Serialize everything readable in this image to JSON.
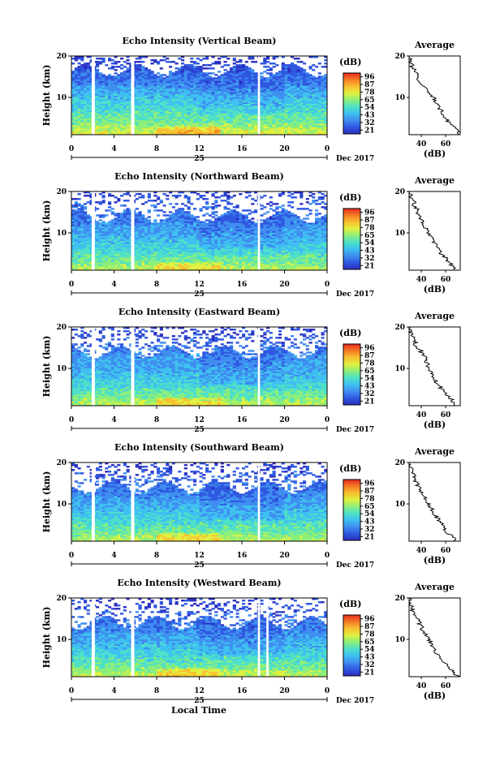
{
  "figure": {
    "xlabel": "Local Time",
    "date_label": "Dec 2017",
    "day_label": "25",
    "ylabel": "Height (km)",
    "colorbar_unit": "(dB)",
    "colorbar_ticks": [
      "96",
      "87",
      "78",
      "65",
      "54",
      "43",
      "32",
      "21"
    ],
    "colorscale": [
      "#2b2ec0",
      "#2f58e0",
      "#3f8ef0",
      "#3fc0f0",
      "#4ee0c8",
      "#8cef7a",
      "#e0f040",
      "#f8c030",
      "#f37d25",
      "#e8281e"
    ],
    "avg_title": "Average",
    "avg_xlabel": "(dB)",
    "avg_xticks": [
      "40",
      "60"
    ],
    "yticks": [
      "20",
      "10"
    ],
    "xticks": [
      "0",
      "4",
      "8",
      "12",
      "16",
      "20",
      "0"
    ]
  },
  "chart_data": [
    {
      "type": "heatmap",
      "title": "Echo Intensity (Vertical Beam)",
      "x_range_hours": [
        0,
        24
      ],
      "y_range_km": [
        1,
        20
      ],
      "z_range_db": [
        21,
        96
      ],
      "gaps_hours": [
        [
          1.9,
          2.2
        ],
        [
          5.6,
          5.9
        ],
        [
          17.5,
          17.7
        ]
      ],
      "avg_profile": {
        "height_km": [
          1,
          2,
          3,
          4,
          5,
          6,
          7,
          8,
          9,
          10,
          11,
          12,
          13,
          14,
          15,
          16,
          17,
          18,
          19,
          20
        ],
        "value_db": [
          72,
          70,
          66,
          62,
          60,
          58,
          56,
          54,
          52,
          50,
          47,
          44,
          41,
          38,
          37,
          36,
          33,
          32,
          31,
          30
        ]
      }
    },
    {
      "type": "heatmap",
      "title": "Echo Intensity (Northward Beam)",
      "x_range_hours": [
        0,
        24
      ],
      "y_range_km": [
        1,
        20
      ],
      "z_range_db": [
        21,
        96
      ],
      "gaps_hours": [
        [
          1.9,
          2.2
        ],
        [
          5.6,
          5.9
        ],
        [
          17.5,
          17.7
        ]
      ],
      "avg_profile": {
        "height_km": [
          1,
          2,
          3,
          4,
          5,
          6,
          7,
          8,
          9,
          10,
          11,
          12,
          13,
          14,
          15,
          16,
          17,
          18,
          19,
          20
        ],
        "value_db": [
          68,
          66,
          62,
          60,
          56,
          54,
          52,
          50,
          48,
          45,
          44,
          42,
          40,
          38,
          37,
          36,
          34,
          33,
          31,
          30
        ]
      }
    },
    {
      "type": "heatmap",
      "title": "Echo Intensity (Eastward Beam)",
      "x_range_hours": [
        0,
        24
      ],
      "y_range_km": [
        1,
        20
      ],
      "z_range_db": [
        21,
        96
      ],
      "gaps_hours": [
        [
          1.9,
          2.2
        ],
        [
          5.6,
          5.9
        ],
        [
          17.5,
          17.7
        ]
      ],
      "avg_profile": {
        "height_km": [
          1,
          2,
          3,
          4,
          5,
          6,
          7,
          8,
          9,
          10,
          11,
          12,
          13,
          14,
          15,
          16,
          17,
          18,
          19,
          20
        ],
        "value_db": [
          68,
          66,
          63,
          60,
          57,
          54,
          52,
          50,
          48,
          46,
          45,
          44,
          43,
          40,
          37,
          35,
          34,
          33,
          31,
          30
        ]
      }
    },
    {
      "type": "heatmap",
      "title": "Echo Intensity (Southward Beam)",
      "x_range_hours": [
        0,
        24
      ],
      "y_range_km": [
        1,
        20
      ],
      "z_range_db": [
        21,
        96
      ],
      "gaps_hours": [
        [
          1.9,
          2.2
        ],
        [
          5.6,
          5.9
        ],
        [
          17.5,
          17.7
        ]
      ],
      "avg_profile": {
        "height_km": [
          1,
          2,
          3,
          4,
          5,
          6,
          7,
          8,
          9,
          10,
          11,
          12,
          13,
          14,
          15,
          16,
          17,
          18,
          19,
          20
        ],
        "value_db": [
          68,
          66,
          62,
          59,
          57,
          55,
          52,
          50,
          48,
          46,
          44,
          42,
          40,
          38,
          36,
          35,
          34,
          32,
          31,
          30
        ]
      }
    },
    {
      "type": "heatmap",
      "title": "Echo Intensity (Westward Beam)",
      "x_range_hours": [
        0,
        24
      ],
      "y_range_km": [
        1,
        20
      ],
      "z_range_db": [
        21,
        96
      ],
      "gaps_hours": [
        [
          1.9,
          2.2
        ],
        [
          5.6,
          5.9
        ],
        [
          17.5,
          17.7
        ],
        [
          18.3,
          18.5
        ]
      ],
      "avg_profile": {
        "height_km": [
          1,
          2,
          3,
          4,
          5,
          6,
          7,
          8,
          9,
          10,
          11,
          12,
          13,
          14,
          15,
          16,
          17,
          18,
          19,
          20
        ],
        "value_db": [
          70,
          67,
          63,
          60,
          57,
          55,
          52,
          50,
          48,
          46,
          44,
          42,
          40,
          38,
          37,
          35,
          33,
          32,
          31,
          30
        ]
      }
    }
  ]
}
